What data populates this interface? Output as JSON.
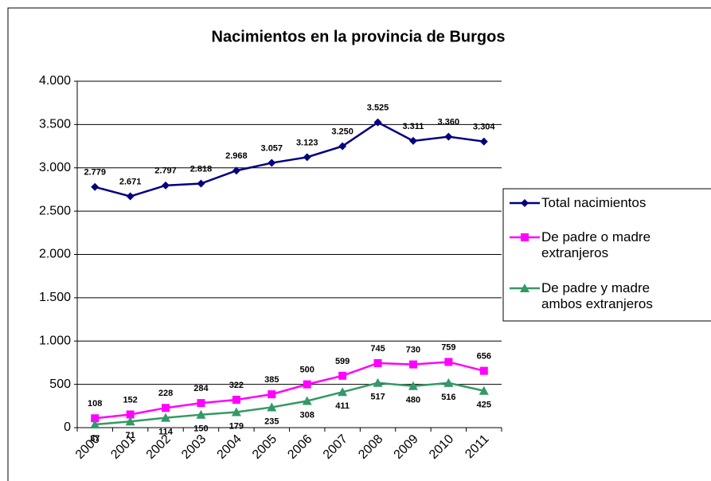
{
  "chart_data": {
    "type": "line",
    "title": "Nacimientos en la provincia de Burgos",
    "categories": [
      "2000",
      "2001",
      "2002",
      "2003",
      "2004",
      "2005",
      "2006",
      "2007",
      "2008",
      "2009",
      "2010",
      "2011"
    ],
    "series": [
      {
        "name": "Total nacimientos",
        "color": "#000080",
        "marker": "diamond",
        "values": [
          2779,
          2671,
          2797,
          2818,
          2968,
          3057,
          3123,
          3250,
          3525,
          3311,
          3360,
          3304
        ],
        "value_labels": [
          "2.779",
          "2.671",
          "2.797",
          "2.818",
          "2.968",
          "3.057",
          "3.123",
          "3.250",
          "3.525",
          "3.311",
          "3.360",
          "3.304"
        ]
      },
      {
        "name": "De padre o madre extranjeros",
        "color": "#ff00ff",
        "marker": "square",
        "values": [
          108,
          152,
          228,
          284,
          322,
          385,
          500,
          599,
          745,
          730,
          759,
          656
        ]
      },
      {
        "name": "De padre y madre ambos extranjeros",
        "color": "#339966",
        "marker": "triangle",
        "values": [
          37,
          71,
          114,
          150,
          179,
          235,
          308,
          411,
          517,
          480,
          516,
          425
        ]
      }
    ],
    "ylim": [
      0,
      4000
    ],
    "yticks": [
      0,
      500,
      {
        "value": 1000,
        "label": "1.000"
      },
      {
        "value": 1500,
        "label": "1.500"
      },
      {
        "value": 2000,
        "label": "2.000"
      },
      {
        "value": 2500,
        "label": "2.500"
      },
      {
        "value": 3000,
        "label": "3.000"
      },
      {
        "value": 3500,
        "label": "3.500"
      },
      {
        "value": 4000,
        "label": "4.000"
      }
    ],
    "grid": true,
    "legend": "right"
  }
}
